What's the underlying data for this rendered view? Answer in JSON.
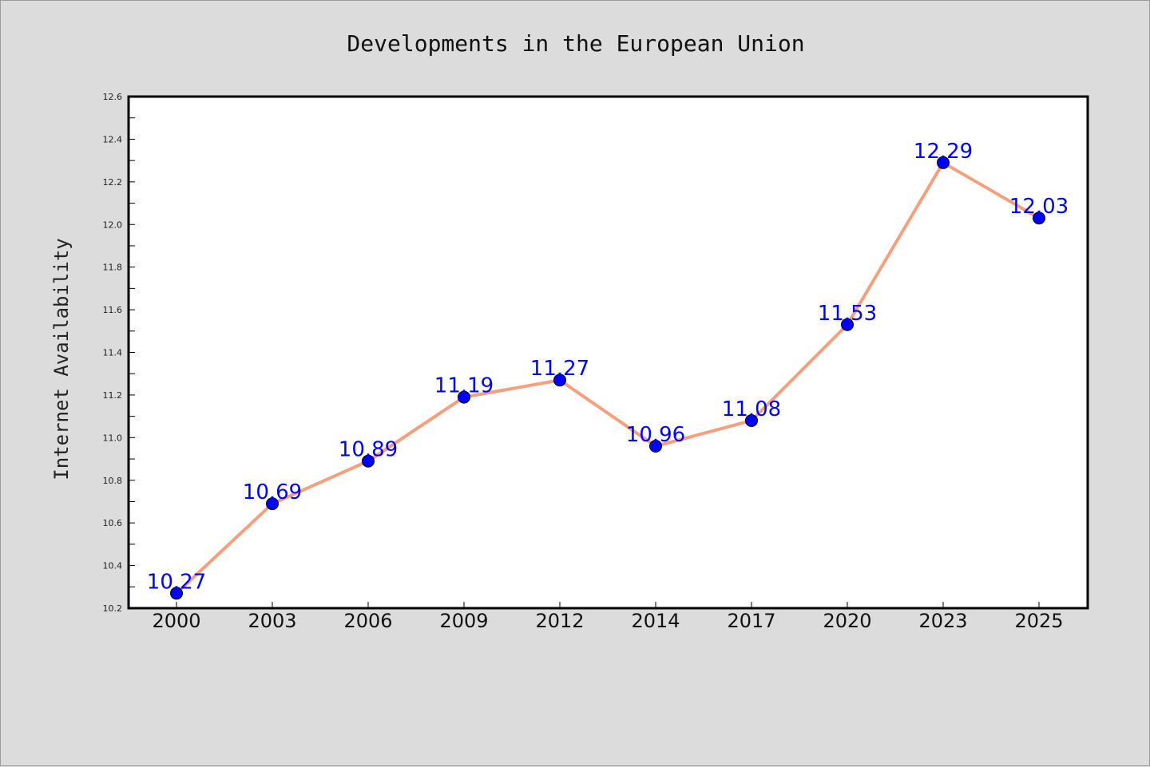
{
  "chart_data": {
    "type": "line",
    "title": "Developments in the European Union",
    "xlabel": "",
    "ylabel": "Internet Availability",
    "categories": [
      "2000",
      "2003",
      "2006",
      "2009",
      "2012",
      "2014",
      "2017",
      "2020",
      "2023",
      "2025"
    ],
    "values": [
      10.27,
      10.69,
      10.89,
      11.19,
      11.27,
      10.96,
      11.08,
      11.53,
      12.29,
      12.03
    ],
    "data_labels": [
      "10.27",
      "10.69",
      "10.89",
      "11.19",
      "11.27",
      "10.96",
      "11.08",
      "11.53",
      "12.29",
      "12.03"
    ],
    "ylim": [
      10.2,
      12.6
    ],
    "yticks": [
      "10.2",
      "10.4",
      "10.6",
      "10.8",
      "11.0",
      "11.2",
      "11.4",
      "11.6",
      "11.8",
      "12.0",
      "12.2",
      "12.4",
      "12.6"
    ],
    "grid": false,
    "legend": "none",
    "colors": {
      "line": "#f4a07e",
      "marker": "#0000ff",
      "label": "#0000ff",
      "background": "#dcdcdc",
      "plot_area": "#ffffff"
    }
  }
}
